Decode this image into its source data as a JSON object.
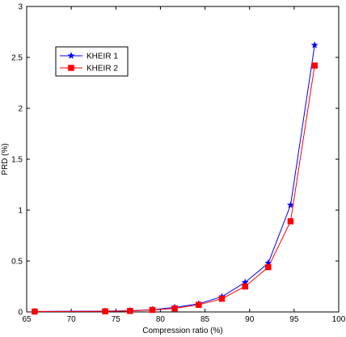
{
  "chart_data": {
    "type": "line",
    "title": "",
    "xlabel": "Compression ratio (%)",
    "ylabel": "PRD (%)",
    "xlim": [
      65,
      100
    ],
    "ylim": [
      0,
      3
    ],
    "xticks": [
      65,
      70,
      75,
      80,
      85,
      90,
      95,
      100
    ],
    "yticks": [
      0,
      0.5,
      1,
      1.5,
      2,
      2.5,
      3
    ],
    "ytick_labels": [
      "0",
      "0.5",
      "1",
      "1.5",
      "2",
      "2.5",
      "3"
    ],
    "grid": false,
    "legend_position": "top-left",
    "series": [
      {
        "name": "KHEIR 1",
        "color": "#0000ff",
        "marker": "star",
        "x": [
          65.9,
          73.8,
          76.6,
          79.1,
          81.6,
          84.3,
          86.9,
          89.5,
          92.1,
          94.6,
          97.3
        ],
        "y": [
          0.005,
          0.008,
          0.012,
          0.022,
          0.045,
          0.08,
          0.15,
          0.29,
          0.48,
          1.05,
          2.62
        ]
      },
      {
        "name": "KHEIR 2",
        "color": "#ff0000",
        "marker": "square",
        "x": [
          65.9,
          73.8,
          76.6,
          79.1,
          81.6,
          84.3,
          86.9,
          89.5,
          92.1,
          94.6,
          97.3
        ],
        "y": [
          0.004,
          0.006,
          0.01,
          0.02,
          0.035,
          0.07,
          0.13,
          0.25,
          0.44,
          0.89,
          2.42
        ]
      }
    ]
  }
}
